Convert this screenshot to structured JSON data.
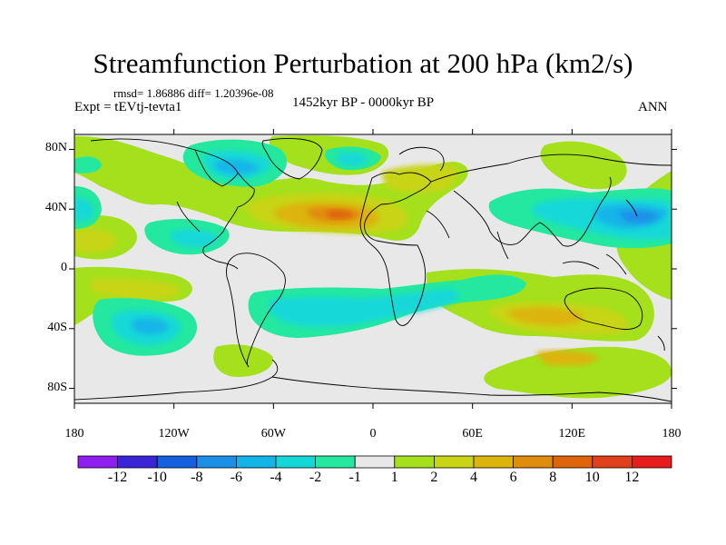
{
  "title": "Streamfunction Perturbation at 200 hPa (km2/s)",
  "subtitle_stats": "rmsd= 1.86886 diff= 1.20396e-08",
  "experiment": "Expt = tEVtj-tevta1",
  "period": "1452kyr BP - 0000kyr BP",
  "season": "ANN",
  "chart_data": {
    "type": "heatmap",
    "projection": "cylindrical equidistant",
    "variable": "Streamfunction perturbation",
    "level": "200 hPa",
    "units": "km2/s",
    "x_range": [
      -180,
      180
    ],
    "y_range": [
      -90,
      90
    ],
    "x_ticks": [
      {
        "value": -180,
        "label": "180"
      },
      {
        "value": -120,
        "label": "120W"
      },
      {
        "value": -60,
        "label": "60W"
      },
      {
        "value": 0,
        "label": "0"
      },
      {
        "value": 60,
        "label": "60E"
      },
      {
        "value": 120,
        "label": "120E"
      },
      {
        "value": 180,
        "label": "180"
      }
    ],
    "y_ticks": [
      {
        "value": 80,
        "label": "80N"
      },
      {
        "value": 40,
        "label": "40N"
      },
      {
        "value": 0,
        "label": "0"
      },
      {
        "value": -40,
        "label": "40S"
      },
      {
        "value": -80,
        "label": "80S"
      }
    ],
    "colorbar": {
      "colors": [
        "#8f1ff0",
        "#3a24d8",
        "#1560e0",
        "#1b90e8",
        "#12b5e8",
        "#14d8d8",
        "#24e8a0",
        "#e8e8e8",
        "#a4e01c",
        "#c8d414",
        "#dcb40c",
        "#e08c0c",
        "#e0640c",
        "#e0401c",
        "#e81c1c"
      ],
      "tick_values": [
        -12,
        -10,
        -8,
        -6,
        -4,
        -2,
        -1,
        1,
        2,
        4,
        6,
        8,
        10,
        12
      ],
      "tick_labels": [
        "-12",
        "-10",
        "-8",
        "-6",
        "-4",
        "-2",
        "-1",
        "1",
        "2",
        "4",
        "6",
        "8",
        "10",
        "12"
      ]
    },
    "features": [
      {
        "lon": -10,
        "lat": 32,
        "value": 6,
        "description": "positive maximum over North Atlantic / NW Africa"
      },
      {
        "lon": 155,
        "lat": 32,
        "value": -4,
        "description": "negative minimum over NW Pacific"
      },
      {
        "lon": -125,
        "lat": -35,
        "value": -4,
        "description": "negative minimum South Pacific"
      },
      {
        "lon": 105,
        "lat": -30,
        "value": 4,
        "description": "positive band over southern Indian Ocean"
      },
      {
        "lon": -70,
        "lat": 58,
        "value": -2,
        "description": "negative over Canada/Hudson Bay"
      },
      {
        "lon": -160,
        "lat": 20,
        "value": 2,
        "description": "positive over central North Pacific"
      }
    ]
  }
}
